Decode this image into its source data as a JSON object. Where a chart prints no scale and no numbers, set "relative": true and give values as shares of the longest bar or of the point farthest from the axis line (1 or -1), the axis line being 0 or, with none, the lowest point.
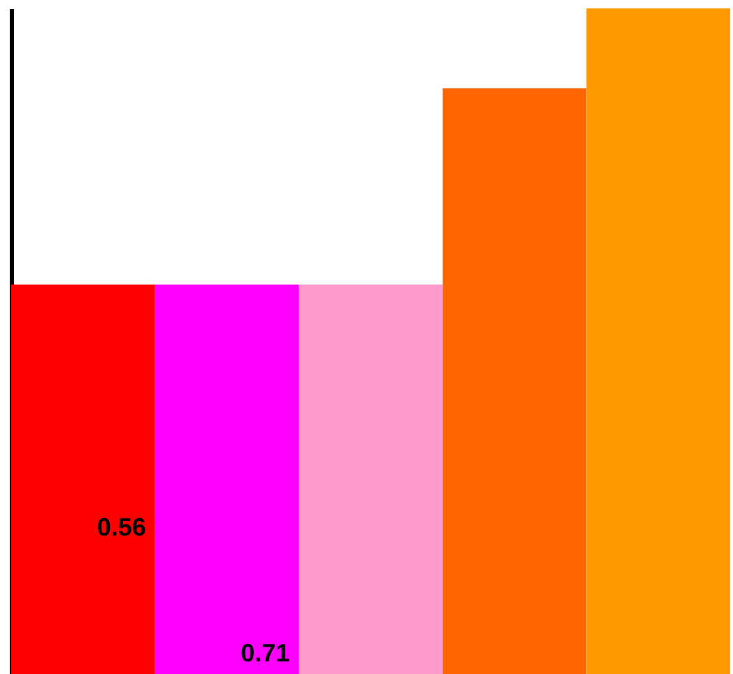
{
  "chart_data": {
    "type": "bar",
    "relative": true,
    "tick_labels": false,
    "categories": [
      null,
      null,
      null,
      null,
      null
    ],
    "values": [
      0.585,
      0.585,
      0.585,
      0.88,
      1.0
    ],
    "colors": [
      "#ff0000",
      "#ff00ff",
      "#ff99cc",
      "#ff6600",
      "#ff9900"
    ],
    "annotations": [
      "0.56",
      "0.71"
    ]
  }
}
